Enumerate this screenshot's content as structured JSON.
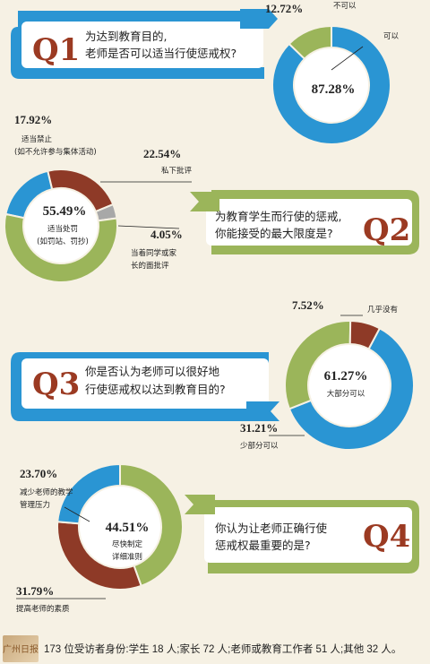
{
  "colors": {
    "blue": "#2a95d3",
    "green": "#9bb55a",
    "red": "#8e3a27",
    "gray": "#a8a8a8",
    "ribbon_white": "#ffffff",
    "q_red": "#9b3a22"
  },
  "questions": [
    {
      "num": "Q1",
      "line1": "为达到教育目的,",
      "line2": "老师是否可以适当行使惩戒权?"
    },
    {
      "num": "Q2",
      "line1": "为教育学生而行使的惩戒,",
      "line2": "你能接受的最大限度是?"
    },
    {
      "num": "Q3",
      "line1": "你是否认为老师可以很好地",
      "line2": "行使惩戒权以达到教育目的?"
    },
    {
      "num": "Q4",
      "line1": "你认为让老师正确行使",
      "line2": "惩戒权最重要的是?"
    }
  ],
  "chart_data": [
    {
      "type": "pie",
      "title": "Q1",
      "slices": [
        {
          "label": "可以",
          "value": 87.28,
          "pct_text": "87.28%",
          "color": "#2a95d3"
        },
        {
          "label": "不可以",
          "value": 12.72,
          "pct_text": "12.72%",
          "color": "#9bb55a"
        }
      ]
    },
    {
      "type": "pie",
      "title": "Q2",
      "slices": [
        {
          "label": "适当处罚(如罚站、罚抄)",
          "label_lines": [
            "适当处罚",
            "(如罚站、罚抄)"
          ],
          "value": 55.49,
          "pct_text": "55.49%",
          "color": "#9bb55a"
        },
        {
          "label": "适当禁止(如不允许参与集体活动)",
          "label_lines": [
            "适当禁止",
            "(如不允许参与集体活动)"
          ],
          "value": 17.92,
          "pct_text": "17.92%",
          "color": "#2a95d3"
        },
        {
          "label": "私下批评",
          "label_lines": [
            "私下批评"
          ],
          "value": 22.54,
          "pct_text": "22.54%",
          "color": "#8e3a27"
        },
        {
          "label": "当着同学或家长的面批评",
          "label_lines": [
            "当着同学或家",
            "长的面批评"
          ],
          "value": 4.05,
          "pct_text": "4.05%",
          "color": "#a8a8a8"
        }
      ]
    },
    {
      "type": "pie",
      "title": "Q3",
      "slices": [
        {
          "label": "大部分可以",
          "value": 61.27,
          "pct_text": "61.27%",
          "color": "#2a95d3"
        },
        {
          "label": "少部分可以",
          "value": 31.21,
          "pct_text": "31.21%",
          "color": "#9bb55a"
        },
        {
          "label": "几乎没有",
          "value": 7.52,
          "pct_text": "7.52%",
          "color": "#8e3a27"
        }
      ]
    },
    {
      "type": "pie",
      "title": "Q4",
      "slices": [
        {
          "label": "尽快制定详细准则",
          "label_lines": [
            "尽快制定",
            "详细准则"
          ],
          "value": 44.51,
          "pct_text": "44.51%",
          "color": "#9bb55a"
        },
        {
          "label": "减少老师的教学管理压力",
          "label_lines": [
            "减少老师的教学",
            "管理压力"
          ],
          "value": 23.7,
          "pct_text": "23.70%",
          "color": "#2a95d3"
        },
        {
          "label": "提高老师的素质",
          "label_lines": [
            "提高老师的素质"
          ],
          "value": 31.79,
          "pct_text": "31.79%",
          "color": "#8e3a27"
        }
      ]
    }
  ],
  "footer": {
    "logo_text": "广州日报",
    "note": "173 位受访者身份:学生 18 人;家长 72 人;老师或教育工作者 51 人;其他 32 人。"
  }
}
